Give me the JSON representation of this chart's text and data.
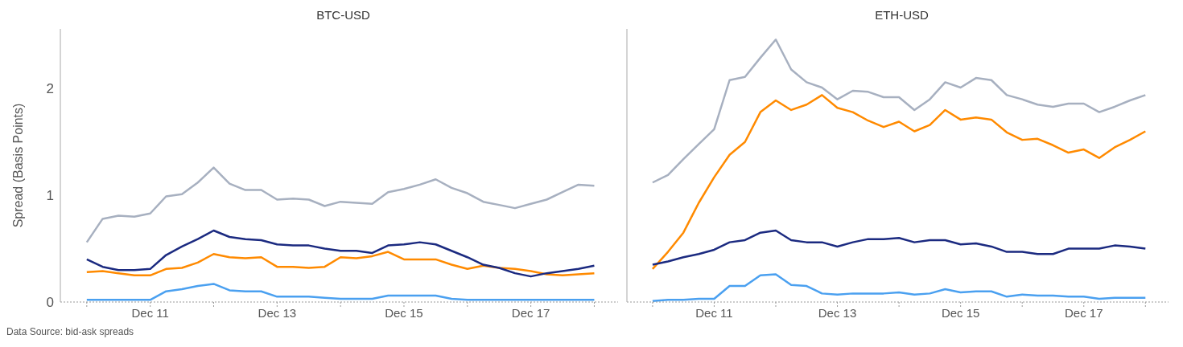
{
  "chart_data": [
    {
      "type": "line",
      "title": "BTC-USD",
      "ylabel": "Spread (Basis Points)",
      "annotations": [
        "Data Source: bid-ask spreads"
      ],
      "x": [
        "--12-10T00:00",
        "--12-10T06:00",
        "--12-10T12:00",
        "--12-10T18:00",
        "--12-11T00:00",
        "--12-11T06:00",
        "--12-11T12:00",
        "--12-11T18:00",
        "--12-12T00:00",
        "--12-12T06:00",
        "--12-12T12:00",
        "--12-12T18:00",
        "--12-13T00:00",
        "--12-13T06:00",
        "--12-13T12:00",
        "--12-13T18:00",
        "--12-14T00:00",
        "--12-14T06:00",
        "--12-14T12:00",
        "--12-14T18:00",
        "--12-15T00:00",
        "--12-15T06:00",
        "--12-15T12:00",
        "--12-15T18:00",
        "--12-16T00:00",
        "--12-16T06:00",
        "--12-16T12:00",
        "--12-16T18:00",
        "--12-17T00:00",
        "--12-17T06:00",
        "--12-17T12:00",
        "--12-17T18:00",
        "--12-18T00:00"
      ],
      "series": [
        {
          "color": "#a7b0c0",
          "values": [
            0.56,
            0.78,
            0.81,
            0.8,
            0.83,
            0.99,
            1.01,
            1.12,
            1.26,
            1.11,
            1.05,
            1.05,
            0.96,
            0.97,
            0.96,
            0.9,
            0.94,
            0.93,
            0.92,
            1.03,
            1.06,
            1.1,
            1.15,
            1.07,
            1.02,
            0.94,
            0.91,
            0.88,
            0.92,
            0.96,
            1.03,
            1.1,
            1.09
          ]
        },
        {
          "color": "#ff8a00",
          "values": [
            0.28,
            0.29,
            0.27,
            0.25,
            0.25,
            0.31,
            0.32,
            0.37,
            0.45,
            0.42,
            0.41,
            0.42,
            0.33,
            0.33,
            0.32,
            0.33,
            0.42,
            0.41,
            0.43,
            0.47,
            0.4,
            0.4,
            0.4,
            0.35,
            0.31,
            0.34,
            0.32,
            0.31,
            0.29,
            0.26,
            0.25,
            0.26,
            0.27
          ]
        },
        {
          "color": "#1b2a80",
          "values": [
            0.4,
            0.33,
            0.3,
            0.3,
            0.31,
            0.44,
            0.52,
            0.59,
            0.67,
            0.61,
            0.59,
            0.58,
            0.54,
            0.53,
            0.53,
            0.5,
            0.48,
            0.48,
            0.46,
            0.53,
            0.54,
            0.56,
            0.54,
            0.48,
            0.42,
            0.35,
            0.32,
            0.27,
            0.24,
            0.27,
            0.29,
            0.31,
            0.34
          ]
        },
        {
          "color": "#4aa0f0",
          "values": [
            0.02,
            0.02,
            0.02,
            0.02,
            0.02,
            0.1,
            0.12,
            0.15,
            0.17,
            0.11,
            0.1,
            0.1,
            0.05,
            0.05,
            0.05,
            0.04,
            0.03,
            0.03,
            0.03,
            0.06,
            0.06,
            0.06,
            0.06,
            0.03,
            0.02,
            0.02,
            0.02,
            0.02,
            0.02,
            0.02,
            0.02,
            0.02,
            0.02
          ]
        }
      ],
      "xlim": [
        "--12-09T14:00",
        "--12-18T09:00"
      ],
      "xticks": [
        {
          "value": "--12-10",
          "label": null
        },
        {
          "value": "--12-11",
          "label": "Dec 11"
        },
        {
          "value": "--12-12",
          "label": null
        },
        {
          "value": "--12-13",
          "label": "Dec 13"
        },
        {
          "value": "--12-14",
          "label": null
        },
        {
          "value": "--12-15",
          "label": "Dec 15"
        },
        {
          "value": "--12-16",
          "label": null
        },
        {
          "value": "--12-17",
          "label": "Dec 17"
        },
        {
          "value": "--12-18",
          "label": null
        }
      ],
      "ylim": [
        0,
        2.56
      ],
      "yticks": [
        0,
        1,
        2
      ],
      "grid": false
    },
    {
      "type": "line",
      "title": "ETH-USD",
      "tick_labels": "x",
      "x": [
        "--12-10T00:00",
        "--12-10T06:00",
        "--12-10T12:00",
        "--12-10T18:00",
        "--12-11T00:00",
        "--12-11T06:00",
        "--12-11T12:00",
        "--12-11T18:00",
        "--12-12T00:00",
        "--12-12T06:00",
        "--12-12T12:00",
        "--12-12T18:00",
        "--12-13T00:00",
        "--12-13T06:00",
        "--12-13T12:00",
        "--12-13T18:00",
        "--12-14T00:00",
        "--12-14T06:00",
        "--12-14T12:00",
        "--12-14T18:00",
        "--12-15T00:00",
        "--12-15T06:00",
        "--12-15T12:00",
        "--12-15T18:00",
        "--12-16T00:00",
        "--12-16T06:00",
        "--12-16T12:00",
        "--12-16T18:00",
        "--12-17T00:00",
        "--12-17T06:00",
        "--12-17T12:00",
        "--12-17T18:00",
        "--12-18T00:00"
      ],
      "series": [
        {
          "color": "#a7b0c0",
          "values": [
            1.12,
            1.19,
            1.34,
            1.48,
            1.62,
            2.08,
            2.11,
            2.29,
            2.46,
            2.18,
            2.06,
            2.01,
            1.9,
            1.98,
            1.97,
            1.92,
            1.92,
            1.8,
            1.9,
            2.06,
            2.01,
            2.1,
            2.08,
            1.94,
            1.9,
            1.85,
            1.83,
            1.86,
            1.86,
            1.78,
            1.83,
            1.89,
            1.94
          ]
        },
        {
          "color": "#ff8a00",
          "values": [
            0.31,
            0.47,
            0.65,
            0.93,
            1.17,
            1.38,
            1.5,
            1.78,
            1.89,
            1.8,
            1.85,
            1.94,
            1.82,
            1.78,
            1.7,
            1.64,
            1.69,
            1.6,
            1.66,
            1.8,
            1.71,
            1.73,
            1.71,
            1.59,
            1.52,
            1.53,
            1.47,
            1.4,
            1.43,
            1.35,
            1.45,
            1.52,
            1.6
          ]
        },
        {
          "color": "#1b2a80",
          "values": [
            0.35,
            0.38,
            0.42,
            0.45,
            0.49,
            0.56,
            0.58,
            0.65,
            0.67,
            0.58,
            0.56,
            0.56,
            0.52,
            0.56,
            0.59,
            0.59,
            0.6,
            0.56,
            0.58,
            0.58,
            0.54,
            0.55,
            0.52,
            0.47,
            0.47,
            0.45,
            0.45,
            0.5,
            0.5,
            0.5,
            0.53,
            0.52,
            0.5
          ]
        },
        {
          "color": "#4aa0f0",
          "values": [
            0.01,
            0.02,
            0.02,
            0.03,
            0.03,
            0.15,
            0.15,
            0.25,
            0.26,
            0.16,
            0.15,
            0.08,
            0.07,
            0.08,
            0.08,
            0.08,
            0.09,
            0.07,
            0.08,
            0.12,
            0.09,
            0.1,
            0.1,
            0.05,
            0.07,
            0.06,
            0.06,
            0.05,
            0.05,
            0.03,
            0.04,
            0.04,
            0.04
          ]
        }
      ],
      "xlim": [
        "--12-09T14:00",
        "--12-18T09:00"
      ],
      "xticks": [
        {
          "value": "--12-10",
          "label": null
        },
        {
          "value": "--12-11",
          "label": "Dec 11"
        },
        {
          "value": "--12-12",
          "label": null
        },
        {
          "value": "--12-13",
          "label": "Dec 13"
        },
        {
          "value": "--12-14",
          "label": null
        },
        {
          "value": "--12-15",
          "label": "Dec 15"
        },
        {
          "value": "--12-16",
          "label": null
        },
        {
          "value": "--12-17",
          "label": "Dec 17"
        },
        {
          "value": "--12-18",
          "label": null
        }
      ],
      "ylim": [
        0,
        2.56
      ],
      "yticks": [
        0,
        1,
        2
      ],
      "grid": false
    }
  ]
}
